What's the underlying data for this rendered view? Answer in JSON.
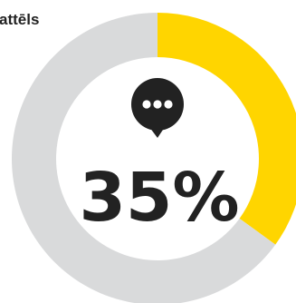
{
  "heading": "attēls",
  "icon": "speech-bubble-icon",
  "colors": {
    "accent": "#FFD500",
    "track": "#D9DADB",
    "text": "#222222",
    "background": "#FFFFFF"
  },
  "chart_data": {
    "type": "pie",
    "variant": "donut",
    "value_percent": 35,
    "value_label": "35%",
    "slices": [
      {
        "value": 35,
        "color": "#FFD500"
      },
      {
        "value": 65,
        "color": "#D9DADB"
      }
    ]
  }
}
